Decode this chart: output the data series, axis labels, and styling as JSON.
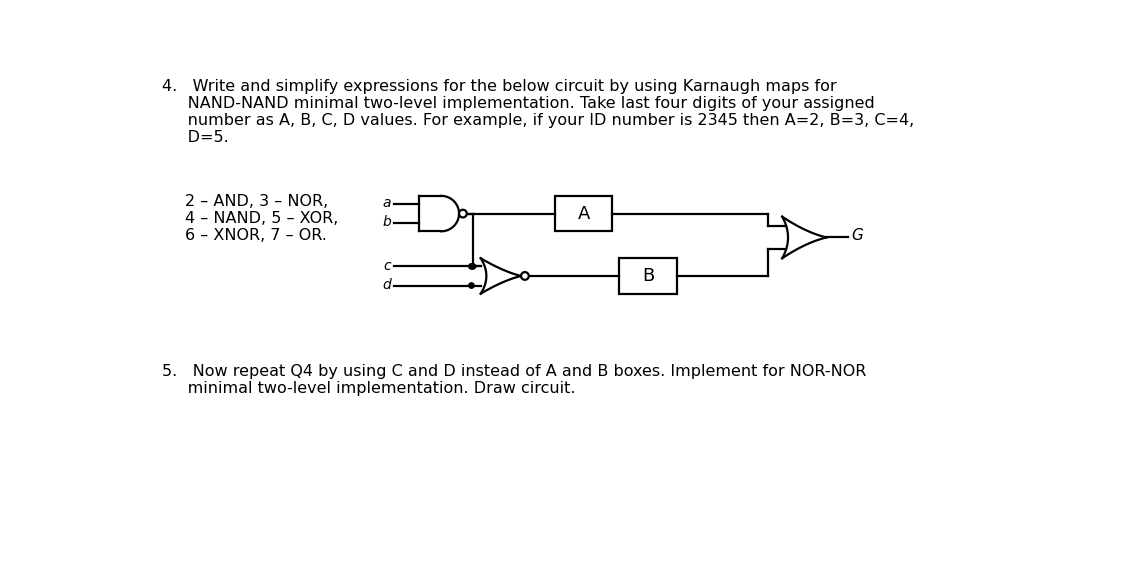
{
  "text_q4_line1": "4.   Write and simplify expressions for the below circuit by using Karnaugh maps for",
  "text_q4_line2": "     NAND-NAND minimal two-level implementation. Take last four digits of your assigned",
  "text_q4_line3": "     number as A, B, C, D values. For example, if your ID number is 2345 then A=2, B=3, C=4,",
  "text_q4_line4": "     D=5.",
  "legend1": "2 – AND, 3 – NOR,",
  "legend2": "4 – NAND, 5 – XOR,",
  "legend3": "6 – XNOR, 7 – OR.",
  "label_a": "a",
  "label_b": "b",
  "label_c": "c",
  "label_d": "d",
  "label_A": "A",
  "label_B": "B",
  "label_G": "G",
  "text_q5_line1": "5.   Now repeat Q4 by using C and D instead of A and B boxes. Implement for NOR-NOR",
  "text_q5_line2": "     minimal two-level implementation. Draw circuit.",
  "bg_color": "#ffffff",
  "lw": 1.6,
  "font_size": 11.5,
  "circuit_font_size": 11
}
